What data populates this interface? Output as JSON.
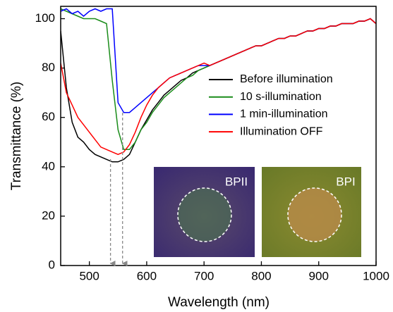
{
  "chart_data": {
    "type": "line",
    "x_label": "Wavelength (nm)",
    "y_label": "Transmittance (%)",
    "xlim": [
      450,
      1000
    ],
    "ylim": [
      0,
      105
    ],
    "xticks": [
      500,
      600,
      700,
      800,
      900,
      1000
    ],
    "yticks": [
      0,
      20,
      40,
      60,
      80,
      100
    ],
    "insets": [
      "BPII",
      "BPI"
    ],
    "x": [
      450,
      460,
      470,
      480,
      490,
      500,
      510,
      520,
      530,
      540,
      550,
      560,
      570,
      580,
      590,
      600,
      610,
      620,
      630,
      640,
      650,
      660,
      670,
      680,
      690,
      700,
      710,
      720,
      730,
      740,
      750,
      760,
      770,
      780,
      790,
      800,
      810,
      820,
      830,
      840,
      850,
      860,
      870,
      880,
      890,
      900,
      910,
      920,
      930,
      940,
      950,
      960,
      970,
      980,
      990,
      1000
    ],
    "series": [
      {
        "name": "Before illumination",
        "color": "#000000",
        "values": [
          95,
          72,
          58,
          52,
          50,
          47,
          45,
          44,
          43,
          42,
          42,
          43,
          45,
          50,
          55,
          59,
          63,
          66,
          69,
          71,
          73,
          75,
          76,
          78,
          79,
          80,
          81,
          82,
          83,
          84,
          85,
          86,
          87,
          88,
          89,
          89,
          90,
          91,
          92,
          92,
          93,
          93,
          94,
          95,
          95,
          96,
          96,
          97,
          97,
          98,
          98,
          98,
          99,
          99,
          100,
          98
        ]
      },
      {
        "name": "10 s-illumination",
        "color": "#1a8c1a",
        "values": [
          104,
          103,
          102,
          101,
          100,
          100,
          100,
          99,
          98,
          75,
          55,
          47,
          47,
          50,
          55,
          58,
          62,
          65,
          68,
          70,
          72,
          74,
          76,
          77,
          79,
          80,
          81,
          82,
          83,
          84,
          85,
          86,
          87,
          88,
          89,
          89,
          90,
          91,
          92,
          92,
          93,
          93,
          94,
          95,
          95,
          96,
          96,
          97,
          97,
          98,
          98,
          98,
          99,
          99,
          100,
          98
        ]
      },
      {
        "name": "1 min-illumination",
        "color": "#0000ff",
        "values": [
          103,
          104,
          102,
          103,
          101,
          103,
          104,
          103,
          104,
          104,
          66,
          62,
          62,
          64,
          66,
          68,
          70,
          72,
          74,
          76,
          77,
          78,
          79,
          80,
          81,
          81,
          81,
          82,
          83,
          84,
          85,
          86,
          87,
          88,
          89,
          89,
          90,
          91,
          92,
          92,
          93,
          93,
          94,
          95,
          95,
          96,
          96,
          97,
          97,
          98,
          98,
          98,
          99,
          99,
          100,
          98
        ]
      },
      {
        "name": "Illumination OFF",
        "color": "#ff0000",
        "values": [
          82,
          70,
          65,
          60,
          57,
          54,
          51,
          48,
          47,
          46,
          45,
          46,
          49,
          54,
          60,
          65,
          69,
          72,
          74,
          76,
          77,
          78,
          79,
          80,
          81,
          82,
          81,
          82,
          83,
          84,
          85,
          86,
          87,
          88,
          89,
          89,
          90,
          91,
          92,
          92,
          93,
          93,
          94,
          95,
          95,
          96,
          96,
          97,
          97,
          98,
          98,
          98,
          99,
          99,
          100,
          98
        ]
      }
    ]
  }
}
